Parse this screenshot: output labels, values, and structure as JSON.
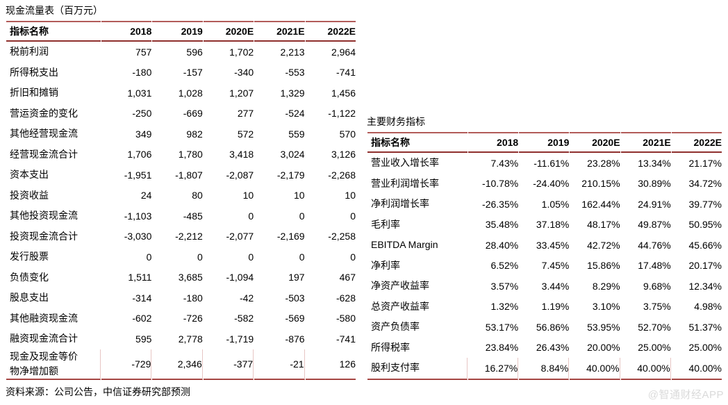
{
  "page": {
    "background_color": "#ffffff",
    "rule_color_top": "#b25b59",
    "rule_color_header": "#8f2f2d",
    "rule_color_bottom": "#a54643",
    "tick_color": "#e7c6c4",
    "watermark_color": "#dadada"
  },
  "left_table": {
    "title": "现金流量表（百万元）",
    "columns": [
      "指标名称",
      "2018",
      "2019",
      "2020E",
      "2021E",
      "2022E"
    ],
    "rows": [
      {
        "label": "税前利润",
        "values": [
          "757",
          "596",
          "1,702",
          "2,213",
          "2,964"
        ]
      },
      {
        "label": "所得税支出",
        "values": [
          "-180",
          "-157",
          "-340",
          "-553",
          "-741"
        ]
      },
      {
        "label": "折旧和摊销",
        "values": [
          "1,031",
          "1,028",
          "1,207",
          "1,329",
          "1,456"
        ]
      },
      {
        "label": "营运资金的变化",
        "values": [
          "-250",
          "-669",
          "277",
          "-524",
          "-1,122"
        ]
      },
      {
        "label": "其他经营现金流",
        "values": [
          "349",
          "982",
          "572",
          "559",
          "570"
        ]
      },
      {
        "label": "经营现金流合计",
        "values": [
          "1,706",
          "1,780",
          "3,418",
          "3,024",
          "3,126"
        ]
      },
      {
        "label": "资本支出",
        "values": [
          "-1,951",
          "-1,807",
          "-2,087",
          "-2,179",
          "-2,268"
        ]
      },
      {
        "label": "投资收益",
        "values": [
          "24",
          "80",
          "10",
          "10",
          "10"
        ]
      },
      {
        "label": "其他投资现金流",
        "values": [
          "-1,103",
          "-485",
          "0",
          "0",
          "0"
        ]
      },
      {
        "label": "投资现金流合计",
        "values": [
          "-3,030",
          "-2,212",
          "-2,077",
          "-2,169",
          "-2,258"
        ]
      },
      {
        "label": "发行股票",
        "values": [
          "0",
          "0",
          "0",
          "0",
          "0"
        ]
      },
      {
        "label": "负债变化",
        "values": [
          "1,511",
          "3,685",
          "-1,094",
          "197",
          "467"
        ]
      },
      {
        "label": "股息支出",
        "values": [
          "-314",
          "-180",
          "-42",
          "-503",
          "-628"
        ]
      },
      {
        "label": "其他融资现金流",
        "values": [
          "-602",
          "-726",
          "-582",
          "-569",
          "-580"
        ]
      },
      {
        "label": "融资现金流合计",
        "values": [
          "595",
          "2,778",
          "-1,719",
          "-876",
          "-741"
        ]
      },
      {
        "label": "现金及现金等价\n物净增加额",
        "values": [
          "-729",
          "2,346",
          "-377",
          "-21",
          "126"
        ]
      }
    ]
  },
  "right_table": {
    "title": "主要财务指标",
    "columns": [
      "指标名称",
      "2018",
      "2019",
      "2020E",
      "2021E",
      "2022E"
    ],
    "rows": [
      {
        "label": "营业收入增长率",
        "values": [
          "7.43%",
          "-11.61%",
          "23.28%",
          "13.34%",
          "21.17%"
        ]
      },
      {
        "label": "营业利润增长率",
        "values": [
          "-10.78%",
          "-24.40%",
          "210.15%",
          "30.89%",
          "34.72%"
        ]
      },
      {
        "label": "净利润增长率",
        "values": [
          "-26.35%",
          "1.05%",
          "162.44%",
          "24.91%",
          "39.77%"
        ]
      },
      {
        "label": "毛利率",
        "values": [
          "35.48%",
          "37.18%",
          "48.17%",
          "49.87%",
          "50.95%"
        ]
      },
      {
        "label": "EBITDA Margin",
        "values": [
          "28.40%",
          "33.45%",
          "42.72%",
          "44.76%",
          "45.66%"
        ]
      },
      {
        "label": "净利率",
        "values": [
          "6.52%",
          "7.45%",
          "15.86%",
          "17.48%",
          "20.17%"
        ]
      },
      {
        "label": "净资产收益率",
        "values": [
          "3.57%",
          "3.44%",
          "8.29%",
          "9.68%",
          "12.34%"
        ]
      },
      {
        "label": "总资产收益率",
        "values": [
          "1.32%",
          "1.19%",
          "3.10%",
          "3.75%",
          "4.98%"
        ]
      },
      {
        "label": "资产负债率",
        "values": [
          "53.17%",
          "56.86%",
          "53.95%",
          "52.70%",
          "51.37%"
        ]
      },
      {
        "label": "所得税率",
        "values": [
          "23.84%",
          "26.43%",
          "20.00%",
          "25.00%",
          "25.00%"
        ]
      },
      {
        "label": "股利支付率",
        "values": [
          "16.27%",
          "8.84%",
          "40.00%",
          "40.00%",
          "40.00%"
        ]
      }
    ]
  },
  "source_note": "资料来源：公司公告，中信证券研究部预测",
  "watermark": "@智通财经APP"
}
